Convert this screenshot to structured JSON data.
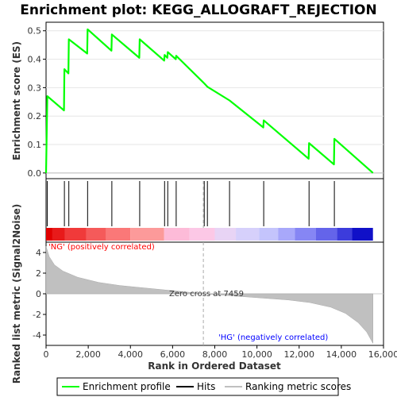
{
  "chart_data": {
    "type": "line",
    "title": "Enrichment plot: KEGG_ALLOGRAFT_REJECTION",
    "top_panel": {
      "ylabel": "Enrichment score (ES)",
      "ylim": [
        -0.02,
        0.53
      ],
      "yticks": [
        0.0,
        0.1,
        0.2,
        0.3,
        0.4,
        0.5
      ],
      "ytick_labels": [
        "0.0",
        "0.1",
        "0.2",
        "0.3",
        "0.4",
        "0.5"
      ],
      "series": [
        {
          "name": "Enrichment profile",
          "color": "#00ff00",
          "points": [
            [
              0,
              0.0
            ],
            [
              60,
              0.27
            ],
            [
              850,
              0.22
            ],
            [
              870,
              0.365
            ],
            [
              1060,
              0.35
            ],
            [
              1080,
              0.47
            ],
            [
              1950,
              0.42
            ],
            [
              1970,
              0.505
            ],
            [
              3100,
              0.43
            ],
            [
              3120,
              0.487
            ],
            [
              4420,
              0.405
            ],
            [
              4440,
              0.47
            ],
            [
              5600,
              0.395
            ],
            [
              5620,
              0.415
            ],
            [
              5750,
              0.405
            ],
            [
              5770,
              0.425
            ],
            [
              6150,
              0.4
            ],
            [
              6170,
              0.412
            ],
            [
              7500,
              0.315
            ],
            [
              7650,
              0.303
            ],
            [
              8700,
              0.255
            ],
            [
              10300,
              0.16
            ],
            [
              10320,
              0.185
            ],
            [
              12450,
              0.05
            ],
            [
              12470,
              0.105
            ],
            [
              13650,
              0.03
            ],
            [
              13670,
              0.12
            ],
            [
              15500,
              0.0
            ]
          ]
        }
      ]
    },
    "hits": [
      60,
      870,
      1080,
      1970,
      3120,
      4440,
      5620,
      5770,
      6170,
      7500,
      7650,
      8700,
      10320,
      12470,
      13670
    ],
    "bottom_panel": {
      "ylabel": "Ranked list metric (Signal2Noise)",
      "xlabel": "Rank in Ordered Dataset",
      "ylim": [
        -5,
        5
      ],
      "yticks": [
        -4,
        -2,
        0,
        2,
        4
      ],
      "ytick_labels": [
        "-4",
        "-2",
        "0",
        "2",
        "4"
      ],
      "xlim": [
        0,
        16000
      ],
      "xticks": [
        0,
        2000,
        4000,
        6000,
        8000,
        10000,
        12000,
        14000,
        16000
      ],
      "xtick_labels": [
        "0",
        "2,000",
        "4,000",
        "6,000",
        "8,000",
        "10,000",
        "12,000",
        "14,000",
        "16,000"
      ],
      "metric_profile": [
        [
          0,
          4.6
        ],
        [
          150,
          3.6
        ],
        [
          400,
          2.8
        ],
        [
          800,
          2.2
        ],
        [
          1500,
          1.6
        ],
        [
          2500,
          1.1
        ],
        [
          3500,
          0.8
        ],
        [
          4500,
          0.6
        ],
        [
          5500,
          0.4
        ],
        [
          6500,
          0.2
        ],
        [
          7459,
          0.0
        ],
        [
          8500,
          -0.15
        ],
        [
          9500,
          -0.3
        ],
        [
          10500,
          -0.45
        ],
        [
          11500,
          -0.6
        ],
        [
          12500,
          -0.85
        ],
        [
          13500,
          -1.3
        ],
        [
          14200,
          -1.9
        ],
        [
          14800,
          -2.8
        ],
        [
          15200,
          -3.7
        ],
        [
          15500,
          -4.8
        ]
      ],
      "zero_cross_label": "Zero cross at 7459",
      "zero_cross": 7459,
      "pos_label": "'NG' (positively correlated)",
      "neg_label": "'HG' (negatively correlated)",
      "pos_color": "#ff0000",
      "neg_color": "#0000ff"
    },
    "n_genes": 15500,
    "legend": {
      "placement": "bottom",
      "items": [
        {
          "label": "Enrichment profile",
          "color": "#00ff00"
        },
        {
          "label": "Hits",
          "color": "#000000"
        },
        {
          "label": "Ranking metric scores",
          "color": "#c0c0c0"
        }
      ]
    }
  }
}
